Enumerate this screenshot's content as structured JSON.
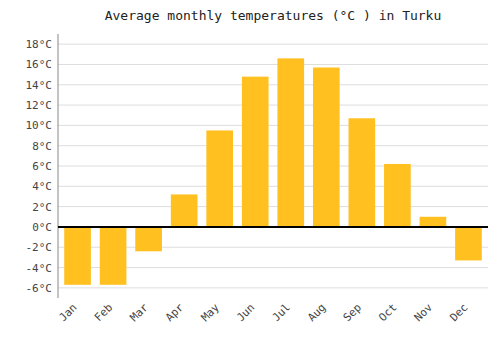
{
  "chart_data": {
    "type": "bar",
    "title": "Average monthly temperatures (°C ) in Turku",
    "categories": [
      "Jan",
      "Feb",
      "Mar",
      "Apr",
      "May",
      "Jun",
      "Jul",
      "Aug",
      "Sep",
      "Oct",
      "Nov",
      "Dec"
    ],
    "values": [
      -5.7,
      -5.7,
      -2.4,
      3.2,
      9.5,
      14.8,
      16.6,
      15.7,
      10.7,
      6.2,
      1.0,
      -3.3
    ],
    "color": "#FFC020",
    "ylim": [
      -7,
      19
    ],
    "yticks": [
      {
        "value": -6,
        "label": "-6°C"
      },
      {
        "value": -4,
        "label": "-4°C"
      },
      {
        "value": -2,
        "label": "-2°C"
      },
      {
        "value": 0,
        "label": "0°C"
      },
      {
        "value": 2,
        "label": "2°C"
      },
      {
        "value": 4,
        "label": "4°C"
      },
      {
        "value": 6,
        "label": "6°C"
      },
      {
        "value": 8,
        "label": "8°C"
      },
      {
        "value": 10,
        "label": "10°C"
      },
      {
        "value": 12,
        "label": "12°C"
      },
      {
        "value": 14,
        "label": "14°C"
      },
      {
        "value": 16,
        "label": "16°C"
      },
      {
        "value": 18,
        "label": "18°C"
      }
    ],
    "grid": true
  }
}
